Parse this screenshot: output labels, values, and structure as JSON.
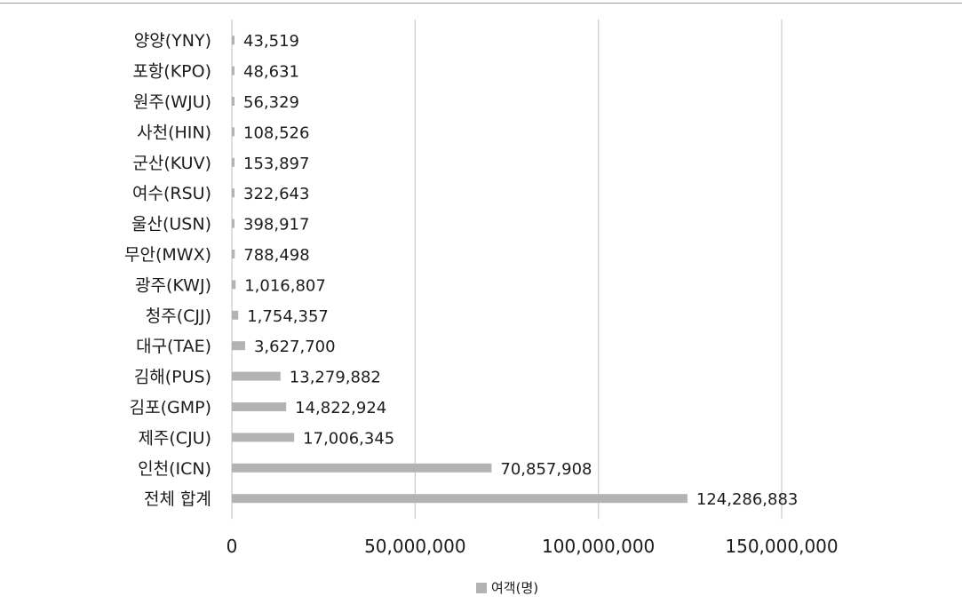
{
  "chart_data": {
    "type": "bar",
    "orientation": "horizontal",
    "categories": [
      "양양(YNY)",
      "포항(KPO)",
      "원주(WJU)",
      "사천(HIN)",
      "군산(KUV)",
      "여수(RSU)",
      "울산(USN)",
      "무안(MWX)",
      "광주(KWJ)",
      "청주(CJJ)",
      "대구(TAE)",
      "김해(PUS)",
      "김포(GMP)",
      "제주(CJU)",
      "인천(ICN)",
      "전체 합계"
    ],
    "series": [
      {
        "name": "여객(명)",
        "values": [
          43519,
          48631,
          56329,
          108526,
          153897,
          322643,
          398917,
          788498,
          1016807,
          1754357,
          3627700,
          13279882,
          14822924,
          17006345,
          70857908,
          124286883
        ],
        "labels": [
          "43,519",
          "48,631",
          "56,329",
          "108,526",
          "153,897",
          "322,643",
          "398,917",
          "788,498",
          "1,016,807",
          "1,754,357",
          "3,627,700",
          "13,279,882",
          "14,822,924",
          "17,006,345",
          "70,857,908",
          "124,286,883"
        ]
      }
    ],
    "x_ticks": [
      0,
      50000000,
      100000000,
      150000000
    ],
    "x_tick_labels": [
      "0",
      "50,000,000",
      "100,000,000",
      "150,000,000"
    ],
    "xlim": [
      0,
      150000000
    ],
    "grid": true,
    "legend_position": "bottom",
    "bar_color": "#b3b3b3",
    "grid_color": "#c8c8c8"
  }
}
